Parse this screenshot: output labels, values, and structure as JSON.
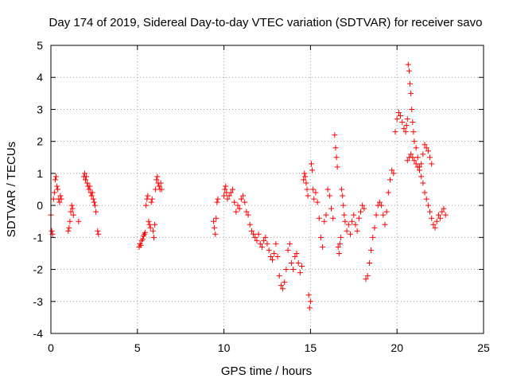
{
  "chart_data": {
    "type": "scatter",
    "title": "Day 174 of 2019, Sidereal Day-to-day VTEC variation (SDTVAR) for receiver savo",
    "xlabel": "GPS time / hours",
    "ylabel": "SDTVAR / TECUs",
    "xlim": [
      0,
      25
    ],
    "ylim": [
      -4,
      5
    ],
    "xticks": [
      "0",
      "5",
      "10",
      "15",
      "20",
      "25"
    ],
    "yticks": [
      "-4",
      "-3",
      "-2",
      "-1",
      "0",
      "1",
      "2",
      "3",
      "4",
      "5"
    ],
    "grid": true,
    "marker": "+",
    "color": "#ff0000",
    "series": [
      {
        "name": "SDTVAR",
        "x": [
          0.0,
          0.05,
          0.1,
          0.15,
          0.2,
          0.25,
          0.3,
          0.35,
          0.4,
          0.45,
          0.5,
          0.55,
          0.6,
          1.0,
          1.05,
          1.1,
          1.15,
          1.2,
          1.25,
          1.3,
          1.6,
          1.9,
          1.95,
          2.0,
          2.05,
          2.1,
          2.15,
          2.2,
          2.25,
          2.3,
          2.35,
          2.4,
          2.45,
          2.5,
          2.55,
          2.6,
          2.7,
          2.75,
          5.1,
          5.15,
          5.2,
          5.25,
          5.3,
          5.35,
          5.4,
          5.45,
          5.5,
          5.55,
          5.6,
          5.65,
          5.7,
          5.75,
          5.8,
          5.85,
          5.9,
          5.95,
          6.0,
          6.05,
          6.1,
          6.15,
          6.2,
          6.25,
          6.3,
          6.35,
          6.4,
          9.4,
          9.45,
          9.5,
          9.55,
          9.6,
          9.65,
          10.0,
          10.05,
          10.1,
          10.15,
          10.2,
          10.3,
          10.4,
          10.5,
          10.6,
          10.7,
          10.8,
          10.9,
          11.0,
          11.1,
          11.2,
          11.3,
          11.4,
          11.5,
          11.6,
          11.7,
          11.8,
          11.9,
          12.0,
          12.1,
          12.2,
          12.3,
          12.4,
          12.5,
          12.6,
          12.7,
          12.8,
          12.9,
          13.0,
          13.1,
          13.2,
          13.3,
          13.4,
          13.5,
          13.6,
          13.7,
          13.8,
          13.9,
          14.0,
          14.1,
          14.2,
          14.3,
          14.4,
          14.5,
          14.6,
          14.65,
          14.7,
          14.75,
          14.8,
          14.85,
          14.9,
          14.95,
          15.0,
          15.05,
          15.1,
          15.15,
          15.2,
          15.3,
          15.4,
          15.5,
          15.6,
          15.7,
          15.8,
          15.9,
          16.0,
          16.1,
          16.2,
          16.3,
          16.4,
          16.45,
          16.5,
          16.55,
          16.6,
          16.65,
          16.7,
          16.75,
          16.8,
          16.85,
          16.9,
          16.95,
          17.0,
          17.1,
          17.2,
          17.3,
          17.4,
          17.5,
          17.6,
          17.7,
          17.8,
          17.9,
          18.0,
          18.1,
          18.2,
          18.3,
          18.4,
          18.5,
          18.6,
          18.7,
          18.8,
          18.9,
          19.0,
          19.1,
          19.2,
          19.3,
          19.4,
          19.5,
          19.6,
          19.7,
          19.8,
          19.9,
          20.0,
          20.1,
          20.2,
          20.3,
          20.4,
          20.5,
          20.55,
          20.6,
          20.65,
          20.7,
          20.75,
          20.8,
          20.85,
          20.9,
          20.95,
          21.0,
          21.1,
          21.2,
          21.3,
          21.4,
          21.5,
          21.6,
          21.7,
          21.8,
          21.9,
          22.0,
          22.1,
          22.2,
          22.3,
          22.4,
          22.5,
          22.6,
          22.7,
          22.8,
          20.6,
          20.7,
          20.8,
          20.9,
          21.0,
          21.1,
          21.2,
          21.3,
          21.4,
          21.5,
          21.6,
          21.7,
          21.8,
          21.9,
          22.0
        ],
        "y": [
          -0.3,
          -0.8,
          -0.9,
          0.2,
          0.4,
          0.8,
          0.9,
          0.6,
          0.5,
          0.2,
          0.1,
          0.3,
          0.2,
          -0.8,
          -0.7,
          -0.5,
          -0.2,
          0.0,
          -0.1,
          -0.3,
          -0.5,
          0.9,
          1.0,
          0.8,
          0.9,
          0.7,
          0.6,
          0.5,
          0.6,
          0.4,
          0.3,
          0.4,
          0.2,
          0.1,
          0.0,
          -0.2,
          -0.8,
          -0.9,
          -1.3,
          -1.2,
          -1.25,
          -1.1,
          -1.05,
          -0.95,
          -0.9,
          -0.85,
          0.0,
          0.2,
          0.3,
          -0.5,
          -0.6,
          -0.7,
          0.1,
          0.2,
          -0.8,
          -1.0,
          -0.6,
          0.5,
          0.8,
          0.9,
          0.7,
          0.6,
          0.5,
          0.7,
          0.5,
          -0.5,
          -0.7,
          -0.9,
          -0.4,
          0.1,
          0.2,
          0.3,
          0.5,
          0.6,
          0.4,
          0.2,
          0.3,
          0.4,
          0.5,
          0.1,
          -0.2,
          0.0,
          -0.1,
          0.2,
          0.3,
          0.1,
          -0.2,
          -0.3,
          -0.6,
          -0.8,
          -0.9,
          -1.0,
          -1.1,
          -0.9,
          -1.2,
          -1.3,
          -1.1,
          -1.0,
          -1.2,
          -1.4,
          -1.6,
          -1.7,
          -1.5,
          -1.2,
          -1.6,
          -2.2,
          -2.5,
          -2.6,
          -2.4,
          -2.0,
          -1.4,
          -1.2,
          -1.8,
          -2.0,
          -1.6,
          -1.5,
          -1.8,
          -2.1,
          -1.9,
          0.8,
          1.0,
          0.9,
          0.7,
          0.5,
          0.3,
          -2.8,
          -3.2,
          -3.0,
          1.3,
          1.1,
          0.5,
          0.2,
          0.4,
          0.1,
          -0.4,
          -1.0,
          -1.3,
          -0.5,
          -0.3,
          0.5,
          0.3,
          -0.1,
          -0.4,
          2.2,
          1.8,
          1.5,
          1.2,
          -1.3,
          -1.5,
          -1.2,
          -1.0,
          0.5,
          0.3,
          0.0,
          -0.3,
          -0.5,
          -0.8,
          -0.6,
          -0.9,
          -0.5,
          -0.3,
          -0.6,
          -0.8,
          -0.4,
          -0.2,
          0.0,
          -0.1,
          -2.3,
          -2.2,
          -1.8,
          -1.4,
          -1.0,
          -0.7,
          -0.3,
          0.0,
          0.1,
          0.0,
          -0.3,
          -0.6,
          -0.2,
          0.4,
          0.8,
          1.1,
          1.0,
          2.3,
          2.7,
          2.9,
          2.8,
          2.6,
          2.4,
          2.3,
          2.5,
          2.7,
          4.4,
          4.2,
          3.8,
          3.5,
          3.0,
          2.6,
          2.3,
          2.0,
          1.8,
          1.5,
          1.2,
          0.9,
          0.7,
          0.4,
          0.2,
          0.0,
          -0.2,
          -0.4,
          -0.6,
          -0.7,
          -0.5,
          -0.3,
          -0.4,
          -0.2,
          -0.1,
          -0.3,
          1.4,
          1.5,
          1.6,
          1.5,
          1.4,
          1.3,
          1.2,
          1.1,
          1.3,
          1.6,
          1.9,
          1.8,
          1.7,
          1.5,
          1.3
        ]
      }
    ]
  }
}
